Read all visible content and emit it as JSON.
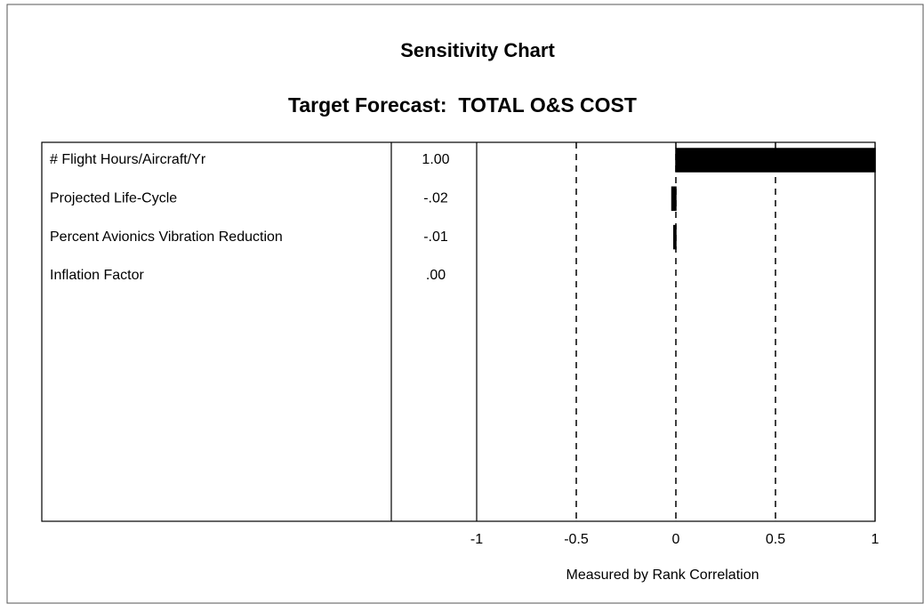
{
  "chart_data": {
    "type": "bar",
    "orientation": "horizontal",
    "title": "Sensitivity Chart",
    "subtitle": "Target Forecast:  TOTAL O&S COST",
    "x_label": "Measured by Rank Correlation",
    "categories": [
      "# Flight Hours/Aircraft/Yr",
      "Projected Life-Cycle",
      "Percent Avionics Vibration Reduction",
      "Inflation Factor"
    ],
    "values": [
      1.0,
      -0.02,
      -0.01,
      0.0
    ],
    "value_labels": [
      "1.00",
      "-.02",
      "-.01",
      ".00"
    ],
    "color": "#000000",
    "xlim": [
      -1,
      1
    ],
    "xticks": [
      -1,
      -0.5,
      0,
      0.5,
      1
    ],
    "grid": true
  }
}
